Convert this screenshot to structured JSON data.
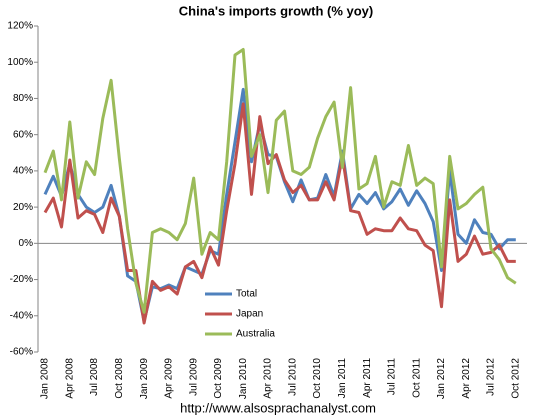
{
  "chart_data": {
    "type": "line",
    "title": "China's imports growth (% yoy)",
    "source": "http://www.alsosprachanalyst.com",
    "categories": [
      "Jan 2008",
      null,
      null,
      "Apr 2008",
      null,
      null,
      "Jul 2008",
      null,
      null,
      "Oct 2008",
      null,
      null,
      "Jan 2009",
      null,
      null,
      "Apr 2009",
      null,
      null,
      "Jul 2009",
      null,
      null,
      "Oct 2009",
      null,
      null,
      "Jan 2010",
      null,
      null,
      "Apr 2010",
      null,
      null,
      "Jul 2010",
      null,
      null,
      "Oct 2010",
      null,
      null,
      "Jan 2011",
      null,
      null,
      "Apr 2011",
      null,
      null,
      "Jul 2011",
      null,
      null,
      "Oct 2011",
      null,
      null,
      "Jan 2012",
      null,
      null,
      "Apr 2012",
      null,
      null,
      "Jul 2012",
      null,
      null,
      "Oct 2012"
    ],
    "series": [
      {
        "name": "Total",
        "color": "#4f81bd",
        "values": [
          27,
          37,
          26,
          44,
          27,
          20,
          17,
          20,
          32,
          15,
          -18,
          -21,
          -43,
          -24,
          -25,
          -23,
          -25,
          -13,
          -15,
          -17,
          -4,
          -6,
          27,
          56,
          85,
          45,
          66,
          49,
          48,
          34,
          23,
          35,
          24,
          25,
          38,
          26,
          51,
          19,
          27,
          22,
          28,
          19,
          23,
          30,
          21,
          29,
          22,
          12,
          -15,
          40,
          5,
          0,
          13,
          6,
          5,
          -3,
          2,
          2
        ]
      },
      {
        "name": "Japan",
        "color": "#c0504d",
        "values": [
          17,
          25,
          9,
          46,
          14,
          18,
          16,
          6,
          25,
          15,
          -15,
          -15,
          -44,
          -21,
          -26,
          -24,
          -28,
          -13,
          -10,
          -19,
          -2,
          -12,
          18,
          44,
          77,
          27,
          70,
          44,
          49,
          35,
          28,
          32,
          24,
          24,
          34,
          24,
          48,
          18,
          17,
          5,
          8,
          7,
          7,
          14,
          8,
          7,
          -1,
          -4,
          -35,
          24,
          -10,
          -6,
          4,
          -6,
          -5,
          -1,
          -10,
          -10
        ]
      },
      {
        "name": "Australia",
        "color": "#9bbb59",
        "values": [
          39,
          51,
          24,
          67,
          25,
          45,
          38,
          69,
          90,
          47,
          8,
          -22,
          -38,
          6,
          8,
          6,
          2,
          11,
          36,
          -6,
          6,
          2,
          45,
          104,
          107,
          48,
          60,
          28,
          68,
          73,
          40,
          38,
          42,
          58,
          70,
          78,
          42,
          86,
          30,
          33,
          48,
          20,
          34,
          32,
          54,
          32,
          36,
          33,
          -13,
          48,
          19,
          22,
          27,
          31,
          -3,
          -9,
          -19,
          -22
        ]
      }
    ],
    "ylim": [
      -60,
      120
    ],
    "yticks": [
      {
        "value": -60,
        "label": "-60%"
      },
      {
        "value": -40,
        "label": "-40%"
      },
      {
        "value": -20,
        "label": "-20%"
      },
      {
        "value": 0,
        "label": "0%"
      },
      {
        "value": 20,
        "label": "20%"
      },
      {
        "value": 40,
        "label": "40%"
      },
      {
        "value": 60,
        "label": "60%"
      },
      {
        "value": 80,
        "label": "80%"
      },
      {
        "value": 100,
        "label": "100%"
      },
      {
        "value": 120,
        "label": "120%"
      }
    ],
    "grid": false
  }
}
